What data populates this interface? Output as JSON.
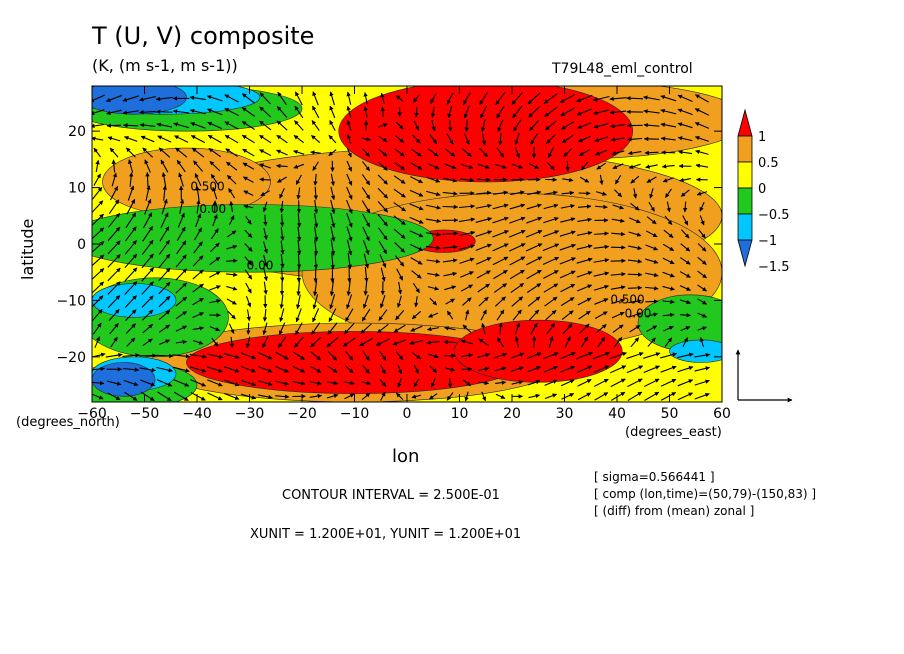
{
  "header": {
    "title": "T (U, V) composite",
    "units": "(K, (m s-1, m s-1))",
    "run_name": "T79L48_eml_control"
  },
  "footer": {
    "contour_interval": "CONTOUR INTERVAL = 2.500E-01",
    "vector_units": "XUNIT = 1.200E+01, YUNIT = 1.200E+01",
    "info_lines": [
      "[ sigma=0.566441 ]",
      "[ comp (lon,time)=(50,79)-(150,83) ]",
      "[ (diff) from (mean) zonal ]"
    ]
  },
  "chart_data": {
    "type": "heatmap",
    "xlabel": "lon",
    "ylabel": "latitude",
    "x_unit_label": "(degrees_east)",
    "y_unit_label": "(degrees_north)",
    "xlim": [
      -60,
      60
    ],
    "ylim": [
      -28,
      28
    ],
    "x_ticks": [
      -60,
      -50,
      -40,
      -30,
      -20,
      -10,
      0,
      10,
      20,
      30,
      40,
      50,
      60
    ],
    "y_ticks": [
      -20,
      -10,
      0,
      10,
      20
    ],
    "x_tick_labels": [
      "−60",
      "−50",
      "−40",
      "−30",
      "−20",
      "−10",
      "0",
      "10",
      "20",
      "30",
      "40",
      "50",
      "60"
    ],
    "y_tick_labels": [
      "−20",
      "−10",
      "0",
      "10",
      "20"
    ],
    "colorbar": {
      "levels": [
        -1.5,
        -1,
        -0.5,
        0,
        0.5,
        1
      ],
      "labels": [
        "−1.5",
        "−1",
        "−0.5",
        "0",
        "0.5",
        "1"
      ],
      "colors": [
        "#1e6edc",
        "#00c8ff",
        "#22c81e",
        "#ffff00",
        "#f0a01e",
        "#ff0000"
      ]
    },
    "contour_labels": [
      {
        "text": "0.500",
        "x": -38,
        "y": 9.5
      },
      {
        "text": "0.00",
        "x": -37,
        "y": 5.5
      },
      {
        "text": "0.00",
        "x": -28,
        "y": -4.5
      },
      {
        "text": "0.500",
        "x": 42,
        "y": -10.5
      },
      {
        "text": "0.00",
        "x": 44,
        "y": -13
      }
    ],
    "blobs": [
      {
        "level": 0.5,
        "cx": 5,
        "cy": 5,
        "rx": 55,
        "ry": 12
      },
      {
        "level": 0.5,
        "cx": 20,
        "cy": -5,
        "rx": 40,
        "ry": 14
      },
      {
        "level": 0.5,
        "cx": -42,
        "cy": 11,
        "rx": 16,
        "ry": 6
      },
      {
        "level": 0.5,
        "cx": -10,
        "cy": -21,
        "rx": 40,
        "ry": 7
      },
      {
        "level": 0.5,
        "cx": 30,
        "cy": 22,
        "rx": 35,
        "ry": 7
      },
      {
        "level": 1.0,
        "cx": 15,
        "cy": 20,
        "rx": 28,
        "ry": 9
      },
      {
        "level": 1.0,
        "cx": -10,
        "cy": -21,
        "rx": 32,
        "ry": 5.5
      },
      {
        "level": 1.0,
        "cx": 25,
        "cy": -19,
        "rx": 16,
        "ry": 5.5
      },
      {
        "level": 1.0,
        "cx": 7,
        "cy": 0.5,
        "rx": 6,
        "ry": 2
      },
      {
        "level": -0.5,
        "cx": -30,
        "cy": 1,
        "rx": 35,
        "ry": 6
      },
      {
        "level": -0.5,
        "cx": -48,
        "cy": -13,
        "rx": 14,
        "ry": 7
      },
      {
        "level": -0.5,
        "cx": 54,
        "cy": -14,
        "rx": 10,
        "ry": 5
      },
      {
        "level": -0.5,
        "cx": -42,
        "cy": 24,
        "rx": 22,
        "ry": 4
      },
      {
        "level": -0.5,
        "cx": -52,
        "cy": -25,
        "rx": 12,
        "ry": 4
      },
      {
        "level": -1.0,
        "cx": -52,
        "cy": -10,
        "rx": 8,
        "ry": 3
      },
      {
        "level": -1.0,
        "cx": -52,
        "cy": -23,
        "rx": 8,
        "ry": 3
      },
      {
        "level": -1.0,
        "cx": 56,
        "cy": -19,
        "rx": 6,
        "ry": 2
      },
      {
        "level": -1.0,
        "cx": -46,
        "cy": 26,
        "rx": 18,
        "ry": 3
      },
      {
        "level": -1.5,
        "cx": -52,
        "cy": 26,
        "rx": 10,
        "ry": 3
      },
      {
        "level": -1.5,
        "cx": -54,
        "cy": -24,
        "rx": 6,
        "ry": 3
      }
    ]
  }
}
